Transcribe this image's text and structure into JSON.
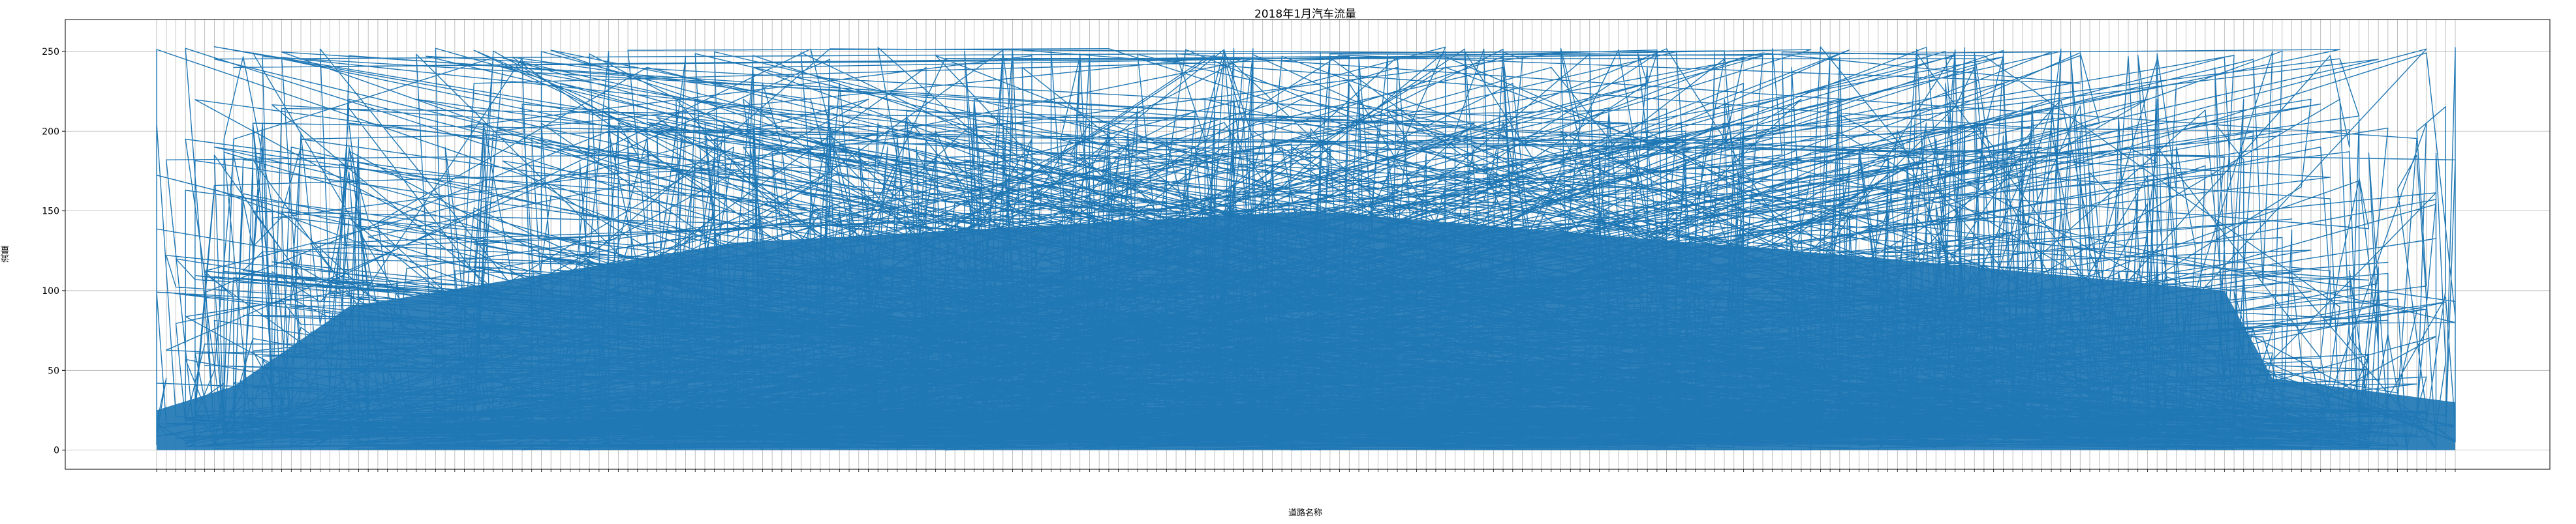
{
  "chart_data": {
    "type": "line",
    "title": "2018年1月汽车流量",
    "xlabel": "道路名称",
    "ylabel": "流量",
    "ylim": [
      -12,
      270
    ],
    "yticks": [
      0,
      50,
      100,
      150,
      200,
      250
    ],
    "grid": true,
    "legend": "none",
    "series_color": "#1f77b4",
    "category_count": 240,
    "series": [
      {
        "values_sample": [
          25,
          22,
          45,
          110,
          250,
          90,
          60,
          180,
          30,
          250,
          70,
          140,
          35,
          200,
          95,
          250,
          40,
          120,
          80,
          250,
          60,
          30,
          110,
          45
        ]
      }
    ]
  }
}
